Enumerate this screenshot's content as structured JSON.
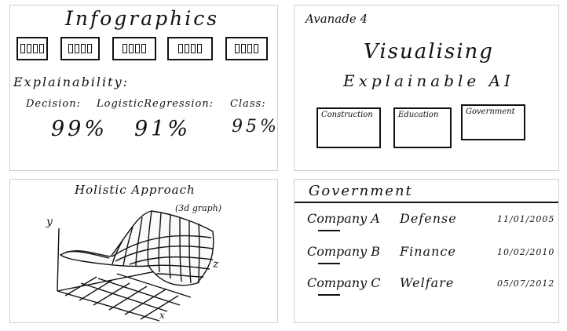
{
  "infographics": {
    "title": "Infographics",
    "section_label": "Explainability:",
    "metrics": [
      {
        "label": "Decision:",
        "value": "99%"
      },
      {
        "label": "LogisticRegression:",
        "value": "91%"
      },
      {
        "label": "Class:",
        "value": "95%"
      }
    ],
    "card_count": 5
  },
  "visualising": {
    "brand": "Avanade 4",
    "title": "Visualising",
    "subtitle": "Explainable AI",
    "sectors": [
      "Construction",
      "Education",
      "Government"
    ]
  },
  "holistic": {
    "title": "Holistic Approach",
    "note": "(3d graph)",
    "axis_y": "y",
    "axis_z": "z",
    "axis_x": "x"
  },
  "government": {
    "title": "Government",
    "rows": [
      {
        "company": "Company A",
        "sector": "Defense",
        "date": "11/01/2005"
      },
      {
        "company": "Company B",
        "sector": "Finance",
        "date": "10/02/2010"
      },
      {
        "company": "Company C",
        "sector": "Welfare",
        "date": "05/07/2012"
      }
    ]
  }
}
